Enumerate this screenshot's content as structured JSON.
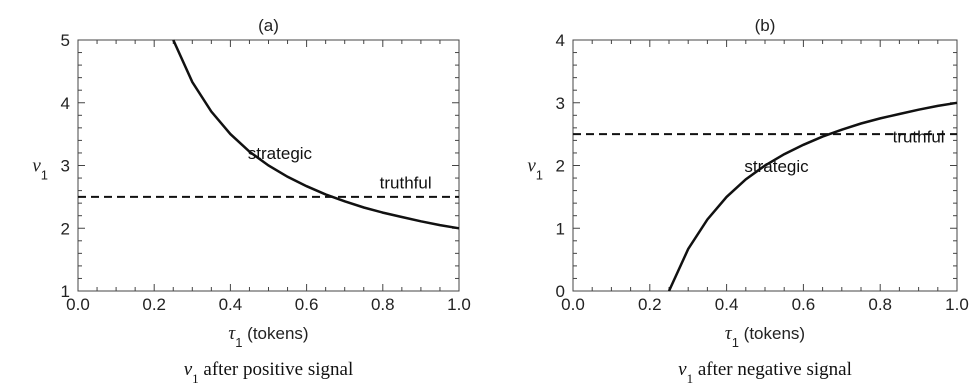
{
  "chart_data": [
    {
      "type": "line",
      "title": "(a)",
      "caption_var": "v",
      "caption_sub": "1",
      "caption_text": "after positive signal",
      "xlabel_var": "τ",
      "xlabel_sub": "1",
      "xlabel_text": "(tokens)",
      "ylabel_var": "v",
      "ylabel_sub": "1",
      "xlim": [
        0.0,
        1.0
      ],
      "ylim": [
        1,
        5
      ],
      "xticks": [
        "0.0",
        "0.2",
        "0.4",
        "0.6",
        "0.8",
        "1.0"
      ],
      "xtick_values": [
        0.0,
        0.2,
        0.4,
        0.6,
        0.8,
        1.0
      ],
      "yticks": [
        "1",
        "2",
        "3",
        "4",
        "5"
      ],
      "ytick_values": [
        1,
        2,
        3,
        4,
        5
      ],
      "grid": false,
      "series": [
        {
          "name": "strategic",
          "style": "solid",
          "color": "#111111",
          "x": [
            0.25,
            0.3,
            0.35,
            0.4,
            0.45,
            0.5,
            0.55,
            0.6,
            0.65,
            0.7,
            0.75,
            0.8,
            0.85,
            0.9,
            0.95,
            1.0
          ],
          "y": [
            5.0,
            4.33,
            3.86,
            3.5,
            3.22,
            3.0,
            2.82,
            2.67,
            2.54,
            2.43,
            2.33,
            2.25,
            2.18,
            2.11,
            2.05,
            2.0
          ]
        },
        {
          "name": "truthful",
          "style": "dashed",
          "color": "#111111",
          "x": [
            0.0,
            1.0
          ],
          "y": [
            2.5,
            2.5
          ]
        }
      ],
      "annotations": [
        {
          "text": "strategic",
          "x": 0.53,
          "y": 3.1
        },
        {
          "text": "truthful",
          "x": 0.86,
          "y": 2.63
        }
      ]
    },
    {
      "type": "line",
      "title": "(b)",
      "caption_var": "v",
      "caption_sub": "1",
      "caption_text": "after negative signal",
      "xlabel_var": "τ",
      "xlabel_sub": "1",
      "xlabel_text": "(tokens)",
      "ylabel_var": "v",
      "ylabel_sub": "1",
      "xlim": [
        0.0,
        1.0
      ],
      "ylim": [
        0,
        4
      ],
      "xticks": [
        "0.0",
        "0.2",
        "0.4",
        "0.6",
        "0.8",
        "1.0"
      ],
      "xtick_values": [
        0.0,
        0.2,
        0.4,
        0.6,
        0.8,
        1.0
      ],
      "yticks": [
        "0",
        "1",
        "2",
        "3",
        "4"
      ],
      "ytick_values": [
        0,
        1,
        2,
        3,
        4
      ],
      "grid": false,
      "series": [
        {
          "name": "strategic",
          "style": "solid",
          "color": "#111111",
          "x": [
            0.25,
            0.3,
            0.35,
            0.4,
            0.45,
            0.5,
            0.55,
            0.6,
            0.65,
            0.7,
            0.75,
            0.8,
            0.85,
            0.9,
            0.95,
            1.0
          ],
          "y": [
            0.0,
            0.67,
            1.14,
            1.5,
            1.78,
            2.0,
            2.18,
            2.33,
            2.46,
            2.57,
            2.67,
            2.75,
            2.82,
            2.89,
            2.95,
            3.0
          ]
        },
        {
          "name": "truthful",
          "style": "dashed",
          "color": "#111111",
          "x": [
            0.0,
            1.0
          ],
          "y": [
            2.5,
            2.5
          ]
        }
      ],
      "annotations": [
        {
          "text": "strategic",
          "x": 0.53,
          "y": 1.9
        },
        {
          "text": "truthful",
          "x": 0.9,
          "y": 2.37
        }
      ]
    }
  ]
}
